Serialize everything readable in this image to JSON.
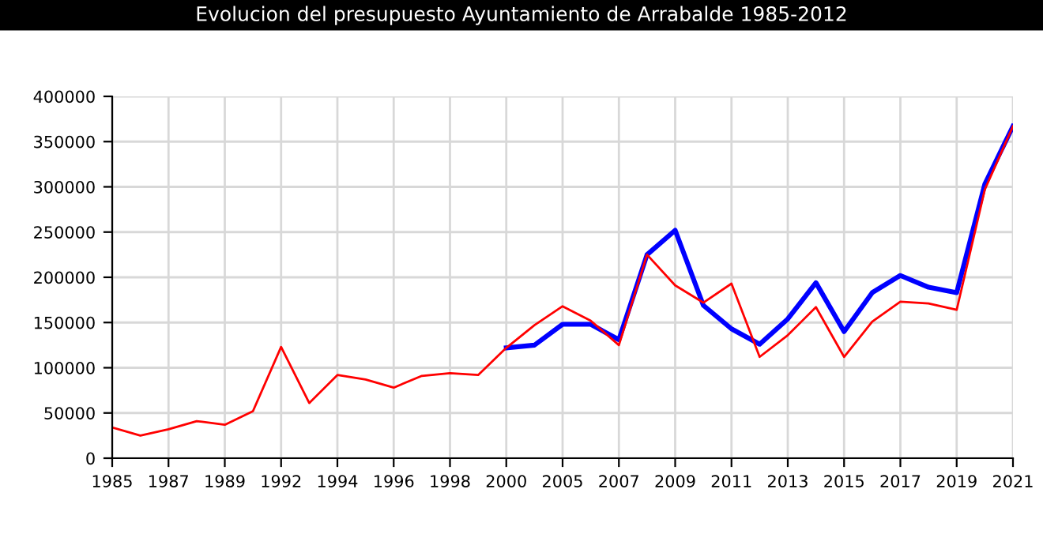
{
  "chart_data": {
    "type": "line",
    "title": "Evolucion del presupuesto Ayuntamiento de Arrabalde 1985-2012",
    "categories": [
      "1985",
      null,
      "1987",
      null,
      "1989",
      null,
      "1992",
      null,
      "1994",
      null,
      "1996",
      null,
      "1998",
      null,
      "2000",
      null,
      "2005",
      null,
      "2007",
      null,
      "2009",
      null,
      "2011",
      null,
      "2013",
      null,
      "2015",
      null,
      "2017",
      null,
      "2019",
      null,
      "2021"
    ],
    "series": [
      {
        "color": "#0000ff",
        "values": [
          null,
          null,
          null,
          null,
          null,
          null,
          null,
          null,
          null,
          null,
          null,
          null,
          null,
          null,
          122000,
          125000,
          148000,
          148000,
          131000,
          225000,
          252000,
          169000,
          143000,
          126000,
          154000,
          194000,
          140000,
          183000,
          202000,
          189000,
          183000,
          303000,
          367000
        ]
      },
      {
        "color": "#ff0000",
        "values": [
          34000,
          25000,
          32000,
          41000,
          37000,
          52000,
          123000,
          61000,
          92000,
          87000,
          78000,
          91000,
          94000,
          92000,
          122000,
          147000,
          168000,
          152000,
          125000,
          225000,
          191000,
          172000,
          193000,
          112000,
          136000,
          167000,
          112000,
          151000,
          173000,
          171000,
          164000,
          297000,
          367000
        ]
      }
    ],
    "ylim": [
      0,
      400000
    ],
    "yticks": [
      0,
      50000,
      100000,
      150000,
      200000,
      250000,
      300000,
      350000,
      400000
    ],
    "grid": true,
    "legend": false,
    "marker": "none",
    "line_style": "solid"
  }
}
